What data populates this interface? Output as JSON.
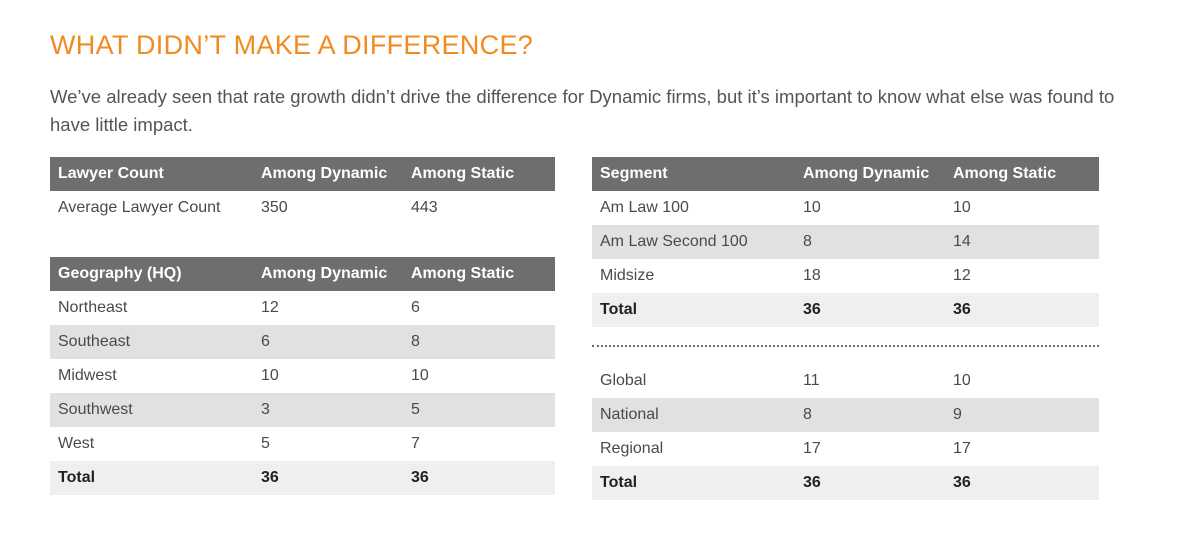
{
  "title": "WHAT DIDN’T MAKE A DIFFERENCE?",
  "intro": "We’ve already seen that rate growth didn’t drive the difference for Dynamic firms, but it’s important to know what else was found to have little impact.",
  "lawyer_table": {
    "headers": [
      "Lawyer Count",
      "Among Dynamic",
      "Among Static"
    ],
    "rows": [
      [
        "Average Lawyer Count",
        "350",
        "443"
      ]
    ]
  },
  "geo_table": {
    "headers": [
      "Geography (HQ)",
      "Among Dynamic",
      "Among Static"
    ],
    "rows": [
      [
        "Northeast",
        "12",
        "6"
      ],
      [
        "Southeast",
        "6",
        "8"
      ],
      [
        "Midwest",
        "10",
        "10"
      ],
      [
        "Southwest",
        "3",
        "5"
      ],
      [
        "West",
        "5",
        "7"
      ]
    ],
    "total": [
      "Total",
      "36",
      "36"
    ]
  },
  "segment_table": {
    "headers": [
      "Segment",
      "Among Dynamic",
      "Among Static"
    ],
    "rows": [
      [
        "Am Law 100",
        "10",
        "10"
      ],
      [
        "Am Law Second 100",
        "8",
        "14"
      ],
      [
        "Midsize",
        "18",
        "12"
      ]
    ],
    "total": [
      "Total",
      "36",
      "36"
    ]
  },
  "scope_table": {
    "rows": [
      [
        "Global",
        "11",
        "10"
      ],
      [
        "National",
        "8",
        "9"
      ],
      [
        "Regional",
        "17",
        "17"
      ]
    ],
    "total": [
      "Total",
      "36",
      "36"
    ]
  },
  "colors": {
    "accent": "#f28a22",
    "header_bg": "#6e6e71",
    "shade": "#e1e1e3"
  }
}
